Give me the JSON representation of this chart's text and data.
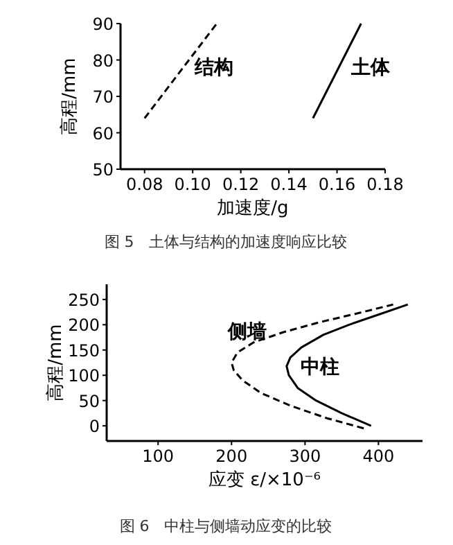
{
  "chart_data": [
    {
      "type": "line",
      "xlabel": "加速度/g",
      "ylabel": "高程/mm",
      "xlim": [
        0.07,
        0.18
      ],
      "ylim": [
        50,
        90
      ],
      "xticks": [
        {
          "value": 0.08,
          "label": "0.08"
        },
        {
          "value": 0.1,
          "label": "0.10"
        },
        {
          "value": 0.12,
          "label": "0.12"
        },
        {
          "value": 0.14,
          "label": "0.14"
        },
        {
          "value": 0.16,
          "label": "0.16"
        },
        {
          "value": 0.18,
          "label": "0.18"
        }
      ],
      "yticks": [
        50,
        60,
        70,
        80,
        90
      ],
      "annotations": [
        "图 5　土体与结构的加速度响应比较"
      ],
      "series": [
        {
          "name": "结构",
          "color": "#000000",
          "line_style": "dashed",
          "x": [
            0.08,
            0.11
          ],
          "values": [
            64,
            90
          ]
        },
        {
          "name": "土体",
          "color": "#000000",
          "line_style": "solid",
          "x": [
            0.15,
            0.17
          ],
          "values": [
            64,
            90
          ]
        }
      ]
    },
    {
      "type": "line",
      "xlabel": "应变 ε/×10⁻⁶",
      "ylabel": "高程/mm",
      "xlim": [
        30,
        460
      ],
      "ylim": [
        -30,
        280
      ],
      "xticks": [
        100,
        200,
        300,
        400
      ],
      "yticks": [
        0,
        50,
        100,
        150,
        200,
        250
      ],
      "annotations": [
        "图 6　中柱与侧墙动应变的比较"
      ],
      "series": [
        {
          "name": "侧墙",
          "color": "#000000",
          "line_style": "dashed",
          "x": [
            380,
            330,
            280,
            240,
            215,
            203,
            200,
            208,
            230,
            270,
            320,
            370,
            420
          ],
          "values": [
            -5,
            15,
            40,
            65,
            90,
            110,
            125,
            145,
            165,
            185,
            205,
            222,
            240
          ]
        },
        {
          "name": "中柱",
          "color": "#000000",
          "line_style": "solid",
          "x": [
            390,
            350,
            315,
            290,
            278,
            275,
            280,
            295,
            325,
            360,
            400,
            440
          ],
          "values": [
            0,
            25,
            50,
            75,
            100,
            118,
            135,
            155,
            180,
            200,
            220,
            240
          ]
        }
      ]
    }
  ]
}
